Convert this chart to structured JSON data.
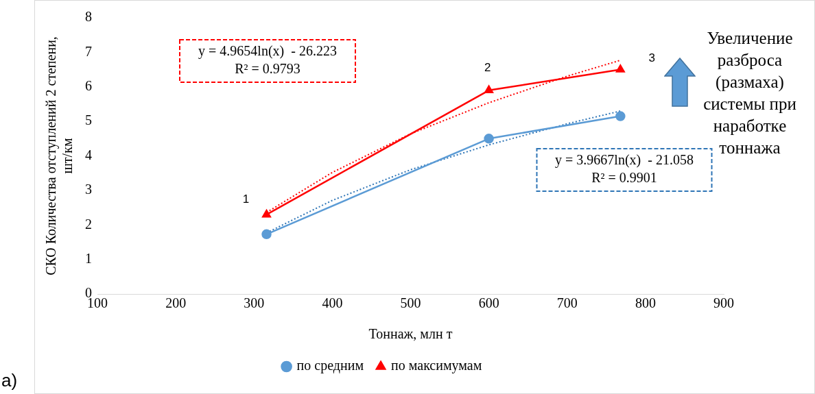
{
  "chart_data": {
    "type": "line",
    "xlabel": "Тоннаж, млн т",
    "ylabel": "СКО Количества отступлений 2 степени, шт/км",
    "xlim": [
      100,
      900
    ],
    "xticks": [
      100,
      200,
      300,
      400,
      500,
      600,
      700,
      800,
      900
    ],
    "ylim": [
      0,
      8
    ],
    "yticks": [
      0,
      1,
      2,
      3,
      4,
      5,
      6,
      7,
      8
    ],
    "grid": false,
    "legend": "bottom",
    "series": [
      {
        "name": "по средним",
        "color": "#5b9bd5",
        "marker": "circle",
        "line_style": "solid",
        "x": [
          316,
          600,
          768
        ],
        "values": [
          1.73,
          4.5,
          5.15
        ]
      },
      {
        "name": "по максимумам",
        "color": "#ff0000",
        "marker": "triangle",
        "line_style": "solid",
        "x": [
          316,
          600,
          768
        ],
        "values": [
          2.3,
          5.9,
          6.5
        ]
      },
      {
        "color": "#2e75b6",
        "marker": "none",
        "line_style": "dotted",
        "x": [
          316,
          400,
          500,
          600,
          700,
          768
        ],
        "values": [
          1.77,
          2.71,
          3.6,
          4.32,
          4.93,
          5.3
        ]
      },
      {
        "color": "#ff0000",
        "marker": "none",
        "line_style": "dotted",
        "x": [
          316,
          400,
          500,
          600,
          700,
          768
        ],
        "values": [
          2.36,
          3.52,
          4.64,
          5.54,
          6.31,
          6.77
        ]
      }
    ],
    "annotations": [
      {
        "text": "1",
        "x": 316,
        "y": 2.3
      },
      {
        "text": "2",
        "x": 600,
        "y": 5.9
      },
      {
        "text": "3",
        "x": 768,
        "y": 6.5
      },
      "y = 4.9654ln(x)  - 26.223\nR² = 0.9793",
      "y = 3.9667ln(x)  - 21.058\nR² = 0.9901",
      "Увеличение разброса (размаха) системы при наработке тоннажа",
      "а)"
    ]
  }
}
